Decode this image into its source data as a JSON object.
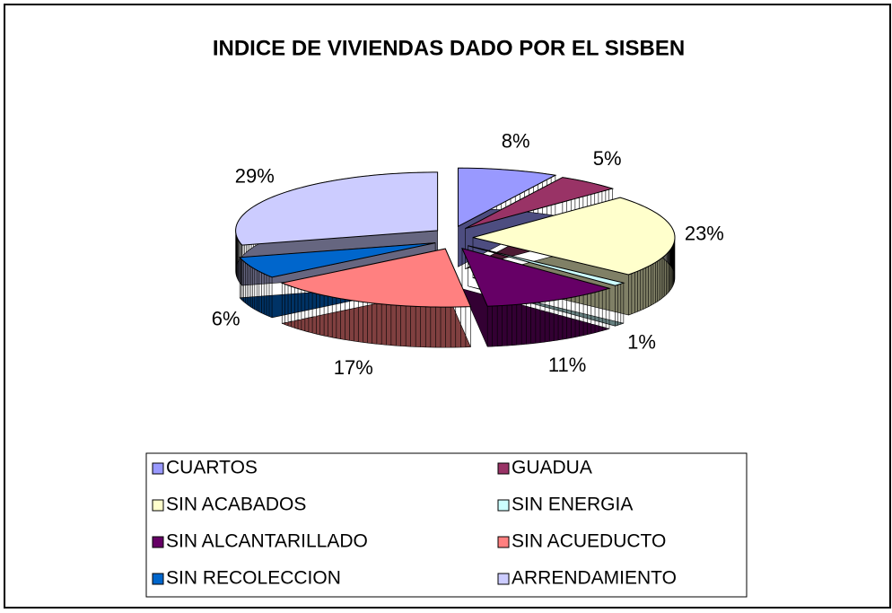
{
  "chart_data": {
    "type": "pie3d",
    "title": "INDICE DE VIVIENDAS DADO POR EL SISBEN",
    "categories": [
      "CUARTOS",
      "GUADUA",
      "SIN ACABADOS",
      "SIN ENERGIA",
      "SIN ALCANTARILLADO",
      "SIN ACUEDUCTO",
      "SIN RECOLECCION",
      "ARRENDAMIENTO"
    ],
    "values": [
      8,
      5,
      23,
      1,
      11,
      17,
      6,
      29
    ],
    "value_labels": [
      "8%",
      "5%",
      "23%",
      "1%",
      "11%",
      "17%",
      "6%",
      "29%"
    ],
    "colors": [
      "#9999ff",
      "#993366",
      "#ffffcc",
      "#ccffff",
      "#660066",
      "#ff8080",
      "#0066cc",
      "#ccccff"
    ],
    "legend": "bottom"
  }
}
